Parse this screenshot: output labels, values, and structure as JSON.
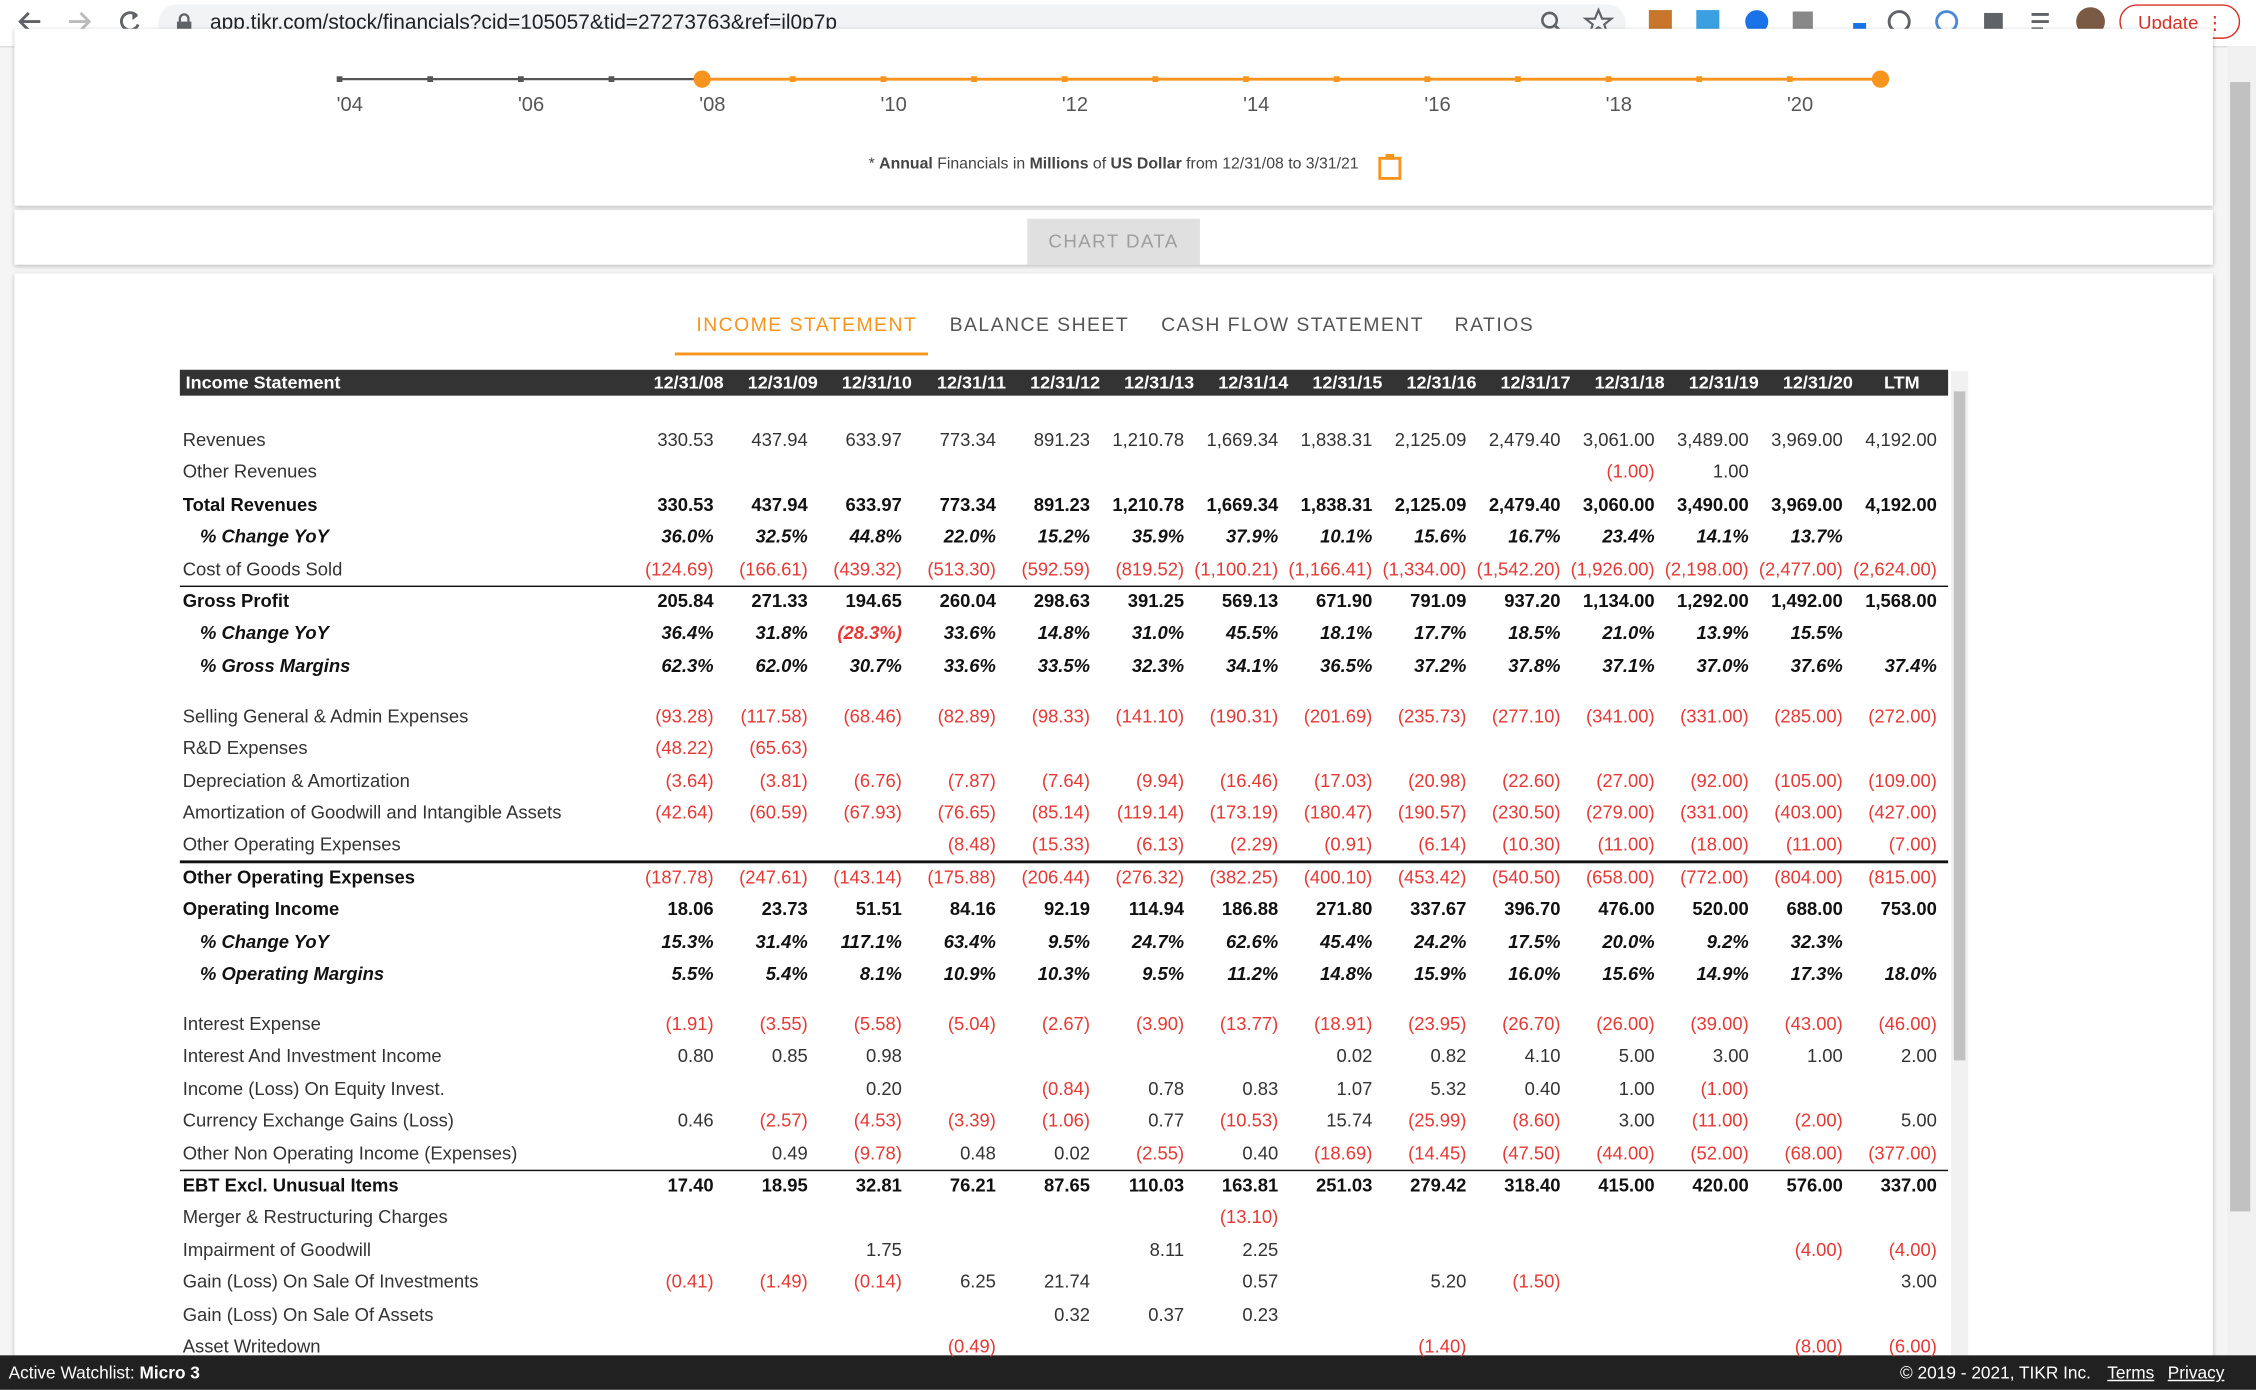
{
  "browser": {
    "url": "app.tikr.com/stock/financials?cid=105057&tid=27273763&ref=jl0p7p",
    "update": "Update"
  },
  "timeline": {
    "labels": [
      "'04",
      "'06",
      "'08",
      "'10",
      "'12",
      "'14",
      "'16",
      "'18",
      "'20"
    ]
  },
  "note": [
    {
      "text": "* "
    },
    {
      "text": "Annual",
      "bold": true
    },
    {
      "text": " Financials in "
    },
    {
      "text": "Millions",
      "bold": true
    },
    {
      "text": " of "
    },
    {
      "text": "US Dollar",
      "bold": true
    },
    {
      "text": " from 12/31/08 to 3/31/21"
    }
  ],
  "chart_button": "CHART DATA",
  "tabs": [
    "INCOME STATEMENT",
    "BALANCE SHEET",
    "CASH FLOW STATEMENT",
    "RATIOS"
  ],
  "table": {
    "title": "Income Statement",
    "columns": [
      "12/31/08",
      "12/31/09",
      "12/31/10",
      "12/31/11",
      "12/31/12",
      "12/31/13",
      "12/31/14",
      "12/31/15",
      "12/31/16",
      "12/31/17",
      "12/31/18",
      "12/31/19",
      "12/31/20",
      "LTM"
    ],
    "sections": [
      [
        {
          "label": "Revenues",
          "values": [
            "330.53",
            "437.94",
            "633.97",
            "773.34",
            "891.23",
            "1,210.78",
            "1,669.34",
            "1,838.31",
            "2,125.09",
            "2,479.40",
            "3,061.00",
            "3,489.00",
            "3,969.00",
            "4,192.00"
          ]
        },
        {
          "label": "Other Revenues",
          "values": [
            null,
            null,
            null,
            null,
            null,
            null,
            null,
            null,
            null,
            null,
            "(1.00)",
            "1.00",
            null,
            null
          ]
        },
        {
          "label": "Total Revenues",
          "bold": true,
          "values": [
            "330.53",
            "437.94",
            "633.97",
            "773.34",
            "891.23",
            "1,210.78",
            "1,669.34",
            "1,838.31",
            "2,125.09",
            "2,479.40",
            "3,060.00",
            "3,490.00",
            "3,969.00",
            "4,192.00"
          ]
        },
        {
          "label": "% Change YoY",
          "italic": true,
          "values": [
            "36.0%",
            "32.5%",
            "44.8%",
            "22.0%",
            "15.2%",
            "35.9%",
            "37.9%",
            "10.1%",
            "15.6%",
            "16.7%",
            "23.4%",
            "14.1%",
            "13.7%",
            null
          ]
        },
        {
          "label": "Cost of Goods Sold",
          "rule": true,
          "values": [
            "(124.69)",
            "(166.61)",
            "(439.32)",
            "(513.30)",
            "(592.59)",
            "(819.52)",
            "(1,100.21)",
            "(1,166.41)",
            "(1,334.00)",
            "(1,542.20)",
            "(1,926.00)",
            "(2,198.00)",
            "(2,477.00)",
            "(2,624.00)"
          ]
        },
        {
          "label": "Gross Profit",
          "bold": true,
          "values": [
            "205.84",
            "271.33",
            "194.65",
            "260.04",
            "298.63",
            "391.25",
            "569.13",
            "671.90",
            "791.09",
            "937.20",
            "1,134.00",
            "1,292.00",
            "1,492.00",
            "1,568.00"
          ]
        },
        {
          "label": "% Change YoY",
          "italic": true,
          "values": [
            "36.4%",
            "31.8%",
            "(28.3%)",
            "33.6%",
            "14.8%",
            "31.0%",
            "45.5%",
            "18.1%",
            "17.7%",
            "18.5%",
            "21.0%",
            "13.9%",
            "15.5%",
            null
          ]
        },
        {
          "label": "% Gross Margins",
          "italic": true,
          "values": [
            "62.3%",
            "62.0%",
            "30.7%",
            "33.6%",
            "33.5%",
            "32.3%",
            "34.1%",
            "36.5%",
            "37.2%",
            "37.8%",
            "37.1%",
            "37.0%",
            "37.6%",
            "37.4%"
          ]
        }
      ],
      [
        {
          "label": "Selling General & Admin Expenses",
          "values": [
            "(93.28)",
            "(117.58)",
            "(68.46)",
            "(82.89)",
            "(98.33)",
            "(141.10)",
            "(190.31)",
            "(201.69)",
            "(235.73)",
            "(277.10)",
            "(341.00)",
            "(331.00)",
            "(285.00)",
            "(272.00)"
          ]
        },
        {
          "label": "R&D Expenses",
          "values": [
            "(48.22)",
            "(65.63)",
            null,
            null,
            null,
            null,
            null,
            null,
            null,
            null,
            null,
            null,
            null,
            null
          ]
        },
        {
          "label": "Depreciation & Amortization",
          "values": [
            "(3.64)",
            "(3.81)",
            "(6.76)",
            "(7.87)",
            "(7.64)",
            "(9.94)",
            "(16.46)",
            "(17.03)",
            "(20.98)",
            "(22.60)",
            "(27.00)",
            "(92.00)",
            "(105.00)",
            "(109.00)"
          ]
        },
        {
          "label": "Amortization of Goodwill and Intangible Assets",
          "values": [
            "(42.64)",
            "(60.59)",
            "(67.93)",
            "(76.65)",
            "(85.14)",
            "(119.14)",
            "(173.19)",
            "(180.47)",
            "(190.57)",
            "(230.50)",
            "(279.00)",
            "(331.00)",
            "(403.00)",
            "(427.00)"
          ]
        },
        {
          "label": "Other Operating Expenses",
          "rule": true,
          "values": [
            null,
            null,
            null,
            "(8.48)",
            "(15.33)",
            "(6.13)",
            "(2.29)",
            "(0.91)",
            "(6.14)",
            "(10.30)",
            "(11.00)",
            "(18.00)",
            "(11.00)",
            "(7.00)"
          ]
        },
        {
          "label": "Other Operating Expenses",
          "bold": true,
          "values": [
            "(187.78)",
            "(247.61)",
            "(143.14)",
            "(175.88)",
            "(206.44)",
            "(276.32)",
            "(382.25)",
            "(400.10)",
            "(453.42)",
            "(540.50)",
            "(658.00)",
            "(772.00)",
            "(804.00)",
            "(815.00)"
          ]
        },
        {
          "label": "Operating Income",
          "bold": true,
          "values": [
            "18.06",
            "23.73",
            "51.51",
            "84.16",
            "92.19",
            "114.94",
            "186.88",
            "271.80",
            "337.67",
            "396.70",
            "476.00",
            "520.00",
            "688.00",
            "753.00"
          ]
        },
        {
          "label": "% Change YoY",
          "italic": true,
          "values": [
            "15.3%",
            "31.4%",
            "117.1%",
            "63.4%",
            "9.5%",
            "24.7%",
            "62.6%",
            "45.4%",
            "24.2%",
            "17.5%",
            "20.0%",
            "9.2%",
            "32.3%",
            null
          ]
        },
        {
          "label": "% Operating Margins",
          "italic": true,
          "values": [
            "5.5%",
            "5.4%",
            "8.1%",
            "10.9%",
            "10.3%",
            "9.5%",
            "11.2%",
            "14.8%",
            "15.9%",
            "16.0%",
            "15.6%",
            "14.9%",
            "17.3%",
            "18.0%"
          ]
        }
      ],
      [
        {
          "label": "Interest Expense",
          "values": [
            "(1.91)",
            "(3.55)",
            "(5.58)",
            "(5.04)",
            "(2.67)",
            "(3.90)",
            "(13.77)",
            "(18.91)",
            "(23.95)",
            "(26.70)",
            "(26.00)",
            "(39.00)",
            "(43.00)",
            "(46.00)"
          ]
        },
        {
          "label": "Interest And Investment Income",
          "values": [
            "0.80",
            "0.85",
            "0.98",
            null,
            null,
            null,
            null,
            "0.02",
            "0.82",
            "4.10",
            "5.00",
            "3.00",
            "1.00",
            "2.00"
          ]
        },
        {
          "label": "Income (Loss) On Equity Invest.",
          "values": [
            null,
            null,
            "0.20",
            null,
            "(0.84)",
            "0.78",
            "0.83",
            "1.07",
            "5.32",
            "0.40",
            "1.00",
            "(1.00)",
            null,
            null
          ]
        },
        {
          "label": "Currency Exchange Gains (Loss)",
          "values": [
            "0.46",
            "(2.57)",
            "(4.53)",
            "(3.39)",
            "(1.06)",
            "0.77",
            "(10.53)",
            "15.74",
            "(25.99)",
            "(8.60)",
            "3.00",
            "(11.00)",
            "(2.00)",
            "5.00"
          ]
        },
        {
          "label": "Other Non Operating Income (Expenses)",
          "rule": true,
          "values": [
            null,
            "0.49",
            "(9.78)",
            "0.48",
            "0.02",
            "(2.55)",
            "0.40",
            "(18.69)",
            "(14.45)",
            "(47.50)",
            "(44.00)",
            "(52.00)",
            "(68.00)",
            "(377.00)"
          ]
        },
        {
          "label": "EBT Excl. Unusual Items",
          "bold": true,
          "values": [
            "17.40",
            "18.95",
            "32.81",
            "76.21",
            "87.65",
            "110.03",
            "163.81",
            "251.03",
            "279.42",
            "318.40",
            "415.00",
            "420.00",
            "576.00",
            "337.00"
          ]
        },
        {
          "label": "Merger & Restructuring Charges",
          "values": [
            null,
            null,
            null,
            null,
            null,
            null,
            "(13.10)",
            null,
            null,
            null,
            null,
            null,
            null,
            null
          ]
        },
        {
          "label": "Impairment of Goodwill",
          "values": [
            null,
            null,
            "1.75",
            null,
            null,
            "8.11",
            "2.25",
            null,
            null,
            null,
            null,
            null,
            "(4.00)",
            "(4.00)"
          ]
        },
        {
          "label": "Gain (Loss) On Sale Of Investments",
          "values": [
            "(0.41)",
            "(1.49)",
            "(0.14)",
            "6.25",
            "21.74",
            null,
            "0.57",
            null,
            "5.20",
            "(1.50)",
            null,
            null,
            null,
            "3.00"
          ]
        },
        {
          "label": "Gain (Loss) On Sale Of Assets",
          "values": [
            null,
            null,
            null,
            null,
            "0.32",
            "0.37",
            "0.23",
            null,
            null,
            null,
            null,
            null,
            null,
            null
          ]
        },
        {
          "label": "Asset Writedown",
          "values": [
            null,
            null,
            null,
            "(0.49)",
            null,
            null,
            null,
            null,
            "(1.40)",
            null,
            null,
            null,
            "(8.00)",
            "(6.00)"
          ]
        }
      ]
    ]
  },
  "footer": {
    "watchlist_label": "Active Watchlist:",
    "watchlist": "Micro 3",
    "copyright": "© 2019 - 2021, TIKR Inc.",
    "terms": "Terms",
    "privacy": "Privacy"
  }
}
